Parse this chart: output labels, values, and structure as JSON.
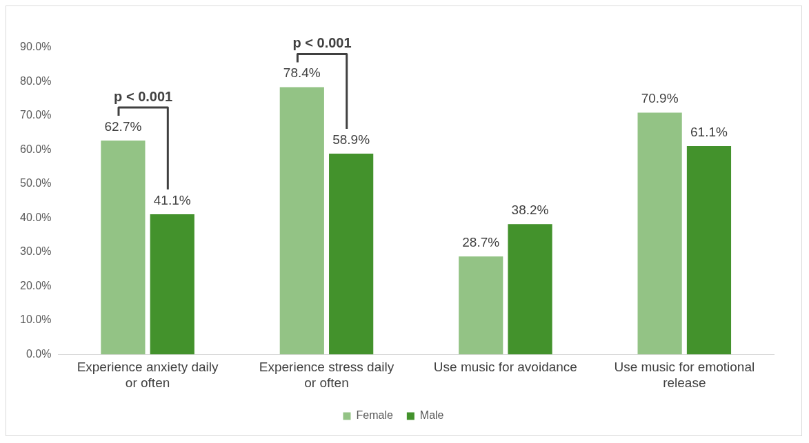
{
  "chart_data": {
    "type": "bar",
    "categories": [
      "Experience anxiety daily or often",
      "Experience stress daily or often",
      "Use music for avoidance",
      "Use music for emotional release"
    ],
    "series": [
      {
        "name": "Female",
        "color": "#93c385",
        "values": [
          62.7,
          78.4,
          28.7,
          70.9
        ],
        "value_labels": [
          "62.7%",
          "78.4%",
          "28.7%",
          "70.9%"
        ]
      },
      {
        "name": "Male",
        "color": "#43922c",
        "values": [
          41.1,
          58.9,
          38.2,
          61.1
        ],
        "value_labels": [
          "41.1%",
          "58.9%",
          "38.2%",
          "61.1%"
        ]
      }
    ],
    "ylim": [
      0,
      90
    ],
    "yticks": [
      {
        "value": 0,
        "label": "0.0%"
      },
      {
        "value": 10,
        "label": "10.0%"
      },
      {
        "value": 20,
        "label": "20.0%"
      },
      {
        "value": 30,
        "label": "30.0%"
      },
      {
        "value": 40,
        "label": "40.0%"
      },
      {
        "value": 50,
        "label": "50.0%"
      },
      {
        "value": 60,
        "label": "60.0%"
      },
      {
        "value": 70,
        "label": "70.0%"
      },
      {
        "value": 80,
        "label": "80.0%"
      },
      {
        "value": 90,
        "label": "90.0%"
      }
    ],
    "grid": false,
    "legend": "bottom",
    "annotations": [
      "p < 0.001",
      "p < 0.001"
    ]
  }
}
